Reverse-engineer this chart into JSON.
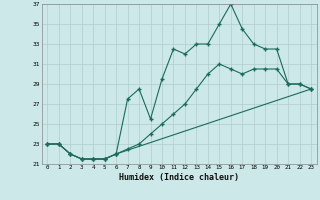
{
  "xlabel": "Humidex (Indice chaleur)",
  "ylabel": "",
  "background_color": "#cce8e8",
  "line_color": "#1a6b5a",
  "xlim": [
    -0.5,
    23.5
  ],
  "ylim": [
    21,
    37
  ],
  "xticks": [
    0,
    1,
    2,
    3,
    4,
    5,
    6,
    7,
    8,
    9,
    10,
    11,
    12,
    13,
    14,
    15,
    16,
    17,
    18,
    19,
    20,
    21,
    22,
    23
  ],
  "yticks": [
    21,
    23,
    25,
    27,
    29,
    31,
    33,
    35,
    37
  ],
  "grid_color": "#b0cccc",
  "line_straight_x": [
    0,
    1,
    2,
    3,
    4,
    5,
    6,
    23
  ],
  "line_straight_y": [
    23,
    23,
    22,
    21.5,
    21.5,
    21.5,
    22,
    28.5
  ],
  "line_mid_x": [
    0,
    1,
    2,
    3,
    4,
    5,
    6,
    7,
    8,
    9,
    10,
    11,
    12,
    13,
    14,
    15,
    16,
    17,
    18,
    19,
    20,
    21,
    22,
    23
  ],
  "line_mid_y": [
    23,
    23,
    22,
    21.5,
    21.5,
    21.5,
    22,
    22.5,
    23,
    24,
    25,
    26,
    27,
    28.5,
    30,
    31,
    30.5,
    30,
    30.5,
    30.5,
    30.5,
    29,
    29,
    28.5
  ],
  "line_zigzag_x": [
    0,
    1,
    2,
    3,
    4,
    5,
    6,
    7,
    8,
    9,
    10,
    11,
    12,
    13,
    14,
    15,
    16,
    17,
    18,
    19,
    20,
    21,
    22,
    23
  ],
  "line_zigzag_y": [
    23,
    23,
    22,
    21.5,
    21.5,
    21.5,
    22,
    27.5,
    28.5,
    25.5,
    29.5,
    32.5,
    32,
    33,
    33,
    35,
    37,
    34.5,
    33,
    32.5,
    32.5,
    29,
    29,
    28.5
  ]
}
